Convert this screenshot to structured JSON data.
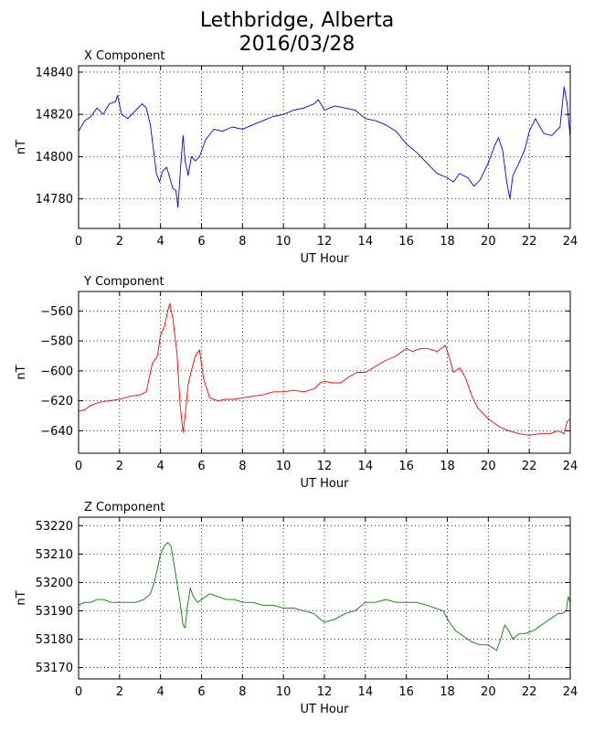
{
  "figure": {
    "title_line1": "Lethbridge, Alberta",
    "title_line2": "2016/03/28"
  },
  "chart_data": [
    {
      "type": "line",
      "title": "X Component",
      "xlabel": "UT Hour",
      "ylabel": "nT",
      "color": "#0000ff",
      "xlim": [
        0,
        24
      ],
      "ylim": [
        14766,
        14843
      ],
      "xticks": [
        0,
        2,
        4,
        6,
        8,
        10,
        12,
        14,
        16,
        18,
        20,
        22,
        24
      ],
      "yticks": [
        14780,
        14800,
        14820,
        14840
      ],
      "grid": true,
      "x": [
        0.0,
        0.3,
        0.6,
        0.9,
        1.2,
        1.5,
        1.8,
        1.9,
        2.1,
        2.4,
        2.8,
        3.1,
        3.3,
        3.5,
        3.7,
        3.8,
        3.95,
        4.1,
        4.3,
        4.45,
        4.6,
        4.75,
        4.85,
        5.0,
        5.1,
        5.2,
        5.35,
        5.5,
        5.7,
        5.9,
        6.2,
        6.6,
        7.0,
        7.5,
        8.0,
        8.5,
        9.0,
        9.5,
        10.0,
        10.5,
        11.0,
        11.5,
        11.7,
        12.0,
        12.5,
        13.0,
        13.5,
        14.0,
        14.5,
        15.0,
        15.5,
        16.0,
        16.5,
        17.0,
        17.5,
        18.0,
        18.3,
        18.6,
        19.0,
        19.3,
        19.6,
        20.0,
        20.3,
        20.5,
        20.7,
        20.9,
        21.05,
        21.2,
        21.5,
        21.8,
        22.0,
        22.3,
        22.7,
        23.1,
        23.5,
        23.7,
        23.85,
        24.0
      ],
      "y": [
        14812,
        14817,
        14819,
        14823,
        14820,
        14825,
        14826,
        14829,
        14820,
        14818,
        14822,
        14825,
        14823,
        14815,
        14800,
        14792,
        14788,
        14793,
        14795,
        14790,
        14785,
        14784,
        14776,
        14798,
        14810,
        14798,
        14791,
        14800,
        14798,
        14800,
        14808,
        14813,
        14812,
        14814,
        14813,
        14815,
        14817,
        14819,
        14820,
        14822,
        14823,
        14825,
        14827,
        14822,
        14824,
        14823,
        14822,
        14818,
        14817,
        14815,
        14812,
        14806,
        14802,
        14797,
        14792,
        14790,
        14788,
        14792,
        14790,
        14786,
        14789,
        14797,
        14805,
        14809,
        14803,
        14788,
        14780,
        14791,
        14797,
        14804,
        14812,
        14818,
        14811,
        14810,
        14814,
        14833,
        14825,
        14809
      ]
    },
    {
      "type": "line",
      "title": "Y Component",
      "xlabel": "UT Hour",
      "ylabel": "nT",
      "color": "#ff0000",
      "xlim": [
        0,
        24
      ],
      "ylim": [
        -655,
        -547
      ],
      "xticks": [
        0,
        2,
        4,
        6,
        8,
        10,
        12,
        14,
        16,
        18,
        20,
        22,
        24
      ],
      "yticks": [
        -560,
        -580,
        -600,
        -620,
        -640
      ],
      "grid": true,
      "x": [
        0.0,
        0.3,
        0.6,
        1.0,
        1.5,
        2.0,
        2.5,
        3.0,
        3.3,
        3.6,
        3.85,
        4.0,
        4.2,
        4.35,
        4.45,
        4.6,
        4.8,
        4.95,
        5.1,
        5.2,
        5.35,
        5.5,
        5.7,
        5.9,
        6.1,
        6.4,
        6.8,
        7.2,
        7.6,
        8.0,
        8.5,
        9.0,
        9.5,
        10.0,
        10.5,
        11.0,
        11.5,
        11.8,
        12.0,
        12.4,
        12.8,
        13.2,
        13.6,
        14.0,
        14.5,
        15.0,
        15.5,
        16.0,
        16.3,
        16.7,
        17.0,
        17.5,
        17.9,
        18.1,
        18.3,
        18.6,
        18.9,
        19.2,
        19.5,
        20.0,
        20.5,
        21.0,
        21.5,
        22.0,
        22.5,
        23.0,
        23.4,
        23.7,
        23.85,
        24.0
      ],
      "y": [
        -627,
        -626,
        -623,
        -621,
        -620,
        -619,
        -617,
        -616,
        -614,
        -595,
        -590,
        -576,
        -570,
        -560,
        -555,
        -565,
        -588,
        -622,
        -641,
        -630,
        -609,
        -600,
        -590,
        -586,
        -605,
        -618,
        -620,
        -619,
        -619,
        -618,
        -617,
        -616,
        -614,
        -614,
        -613,
        -614,
        -612,
        -608,
        -607,
        -608,
        -608,
        -604,
        -601,
        -601,
        -597,
        -593,
        -590,
        -585,
        -587,
        -585,
        -585,
        -587,
        -583,
        -591,
        -601,
        -598,
        -605,
        -617,
        -625,
        -632,
        -637,
        -640,
        -642,
        -643,
        -642,
        -642,
        -640,
        -642,
        -634,
        -632
      ]
    },
    {
      "type": "line",
      "title": "Z Component",
      "xlabel": "UT Hour",
      "ylabel": "nT",
      "color": "#008000",
      "xlim": [
        0,
        24
      ],
      "ylim": [
        53166,
        53223
      ],
      "xticks": [
        0,
        2,
        4,
        6,
        8,
        10,
        12,
        14,
        16,
        18,
        20,
        22,
        24
      ],
      "yticks": [
        53170,
        53180,
        53190,
        53200,
        53210,
        53220
      ],
      "grid": true,
      "x": [
        0.0,
        0.3,
        0.6,
        0.9,
        1.2,
        1.6,
        2.0,
        2.4,
        2.8,
        3.2,
        3.5,
        3.7,
        3.85,
        4.0,
        4.2,
        4.35,
        4.5,
        4.65,
        4.8,
        4.95,
        5.1,
        5.2,
        5.3,
        5.45,
        5.6,
        5.8,
        6.0,
        6.4,
        6.8,
        7.2,
        7.6,
        8.0,
        8.5,
        9.0,
        9.5,
        10.0,
        10.5,
        11.0,
        11.5,
        11.8,
        12.0,
        12.5,
        13.0,
        13.5,
        14.0,
        14.5,
        15.0,
        15.5,
        16.0,
        16.5,
        17.0,
        17.4,
        17.8,
        18.1,
        18.4,
        18.8,
        19.2,
        19.6,
        20.0,
        20.2,
        20.4,
        20.6,
        20.8,
        21.0,
        21.2,
        21.5,
        21.8,
        22.2,
        22.6,
        23.0,
        23.4,
        23.6,
        23.8,
        23.9,
        24.0
      ],
      "y": [
        53192,
        53193,
        53193,
        53194,
        53194,
        53193,
        53193,
        53193,
        53193,
        53194,
        53196,
        53200,
        53205,
        53210,
        53213,
        53214,
        53213,
        53207,
        53200,
        53193,
        53185,
        53184,
        53191,
        53198,
        53195,
        53193,
        53194,
        53196,
        53195,
        53194,
        53194,
        53193,
        53193,
        53192,
        53192,
        53191,
        53191,
        53190,
        53189,
        53187,
        53186,
        53187,
        53189,
        53190,
        53193,
        53193,
        53194,
        53193,
        53193,
        53193,
        53192,
        53191,
        53190,
        53186,
        53183,
        53181,
        53179,
        53178,
        53178,
        53177,
        53176,
        53180,
        53185,
        53183,
        53180,
        53182,
        53182,
        53183,
        53185,
        53187,
        53189,
        53189,
        53190,
        53195,
        53193
      ]
    }
  ]
}
